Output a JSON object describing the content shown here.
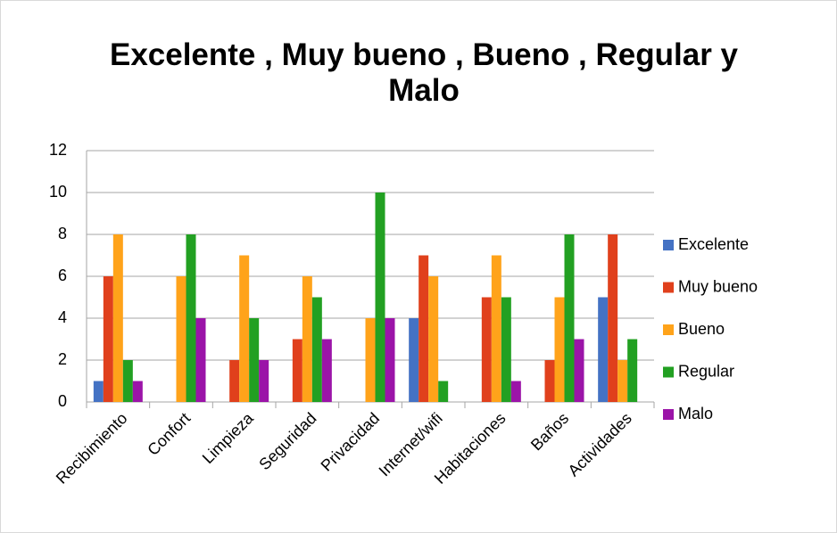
{
  "chart_data": {
    "type": "bar",
    "title": "Excelente , Muy bueno , Bueno , Regular y Malo",
    "categories": [
      "Recibimiento",
      "Confort",
      "Limpieza",
      "Seguridad",
      "Privacidad",
      "Internet/wifi",
      "Habitaciones",
      "Baños",
      "Actividades"
    ],
    "series": [
      {
        "name": "Excelente",
        "color": "#4472c4",
        "values": [
          1,
          0,
          0,
          0,
          0,
          4,
          0,
          0,
          5
        ]
      },
      {
        "name": "Muy bueno",
        "color": "#e0401c",
        "values": [
          6,
          0,
          2,
          3,
          0,
          7,
          5,
          2,
          8
        ]
      },
      {
        "name": "Bueno",
        "color": "#ffa31a",
        "values": [
          8,
          6,
          7,
          6,
          4,
          6,
          7,
          5,
          2
        ]
      },
      {
        "name": "Regular",
        "color": "#22a022",
        "values": [
          2,
          8,
          4,
          5,
          10,
          1,
          5,
          8,
          3
        ]
      },
      {
        "name": "Malo",
        "color": "#9b14a8",
        "values": [
          1,
          4,
          2,
          3,
          4,
          0,
          1,
          3,
          0
        ]
      }
    ],
    "ylim": [
      0,
      12
    ],
    "yticks": [
      0,
      2,
      4,
      6,
      8,
      10,
      12
    ],
    "grid": true,
    "legend": "right"
  }
}
